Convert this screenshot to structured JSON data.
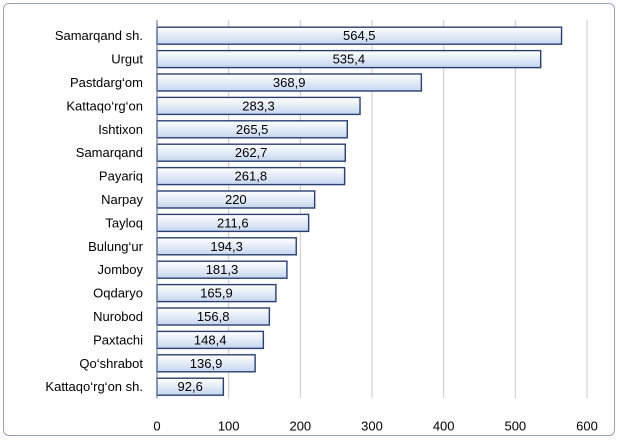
{
  "chart_data": {
    "type": "bar",
    "orientation": "horizontal",
    "categories": [
      "Samarqand sh.",
      "Urgut",
      "Pastdarg‘om",
      "Kattaqo‘rg‘on",
      "Ishtixon",
      "Samarqand",
      "Payariq",
      "Narpay",
      "Tayloq",
      "Bulung‘ur",
      "Jomboy",
      "Oqdaryo",
      "Nurobod",
      "Paxtachi",
      "Qo‘shrabot",
      "Kattaqo‘rg‘on sh."
    ],
    "values": [
      564.5,
      535.4,
      368.9,
      283.3,
      265.5,
      262.7,
      261.8,
      220,
      211.6,
      194.3,
      181.3,
      165.9,
      156.8,
      148.4,
      136.9,
      92.6
    ],
    "value_labels": [
      "564,5",
      "535,4",
      "368,9",
      "283,3",
      "265,5",
      "262,7",
      "261,8",
      "220",
      "211,6",
      "194,3",
      "181,3",
      "165,9",
      "156,8",
      "148,4",
      "136,9",
      "92,6"
    ],
    "xlim": [
      0,
      600
    ],
    "x_ticks": [
      0,
      100,
      200,
      300,
      400,
      500,
      600
    ],
    "x_tick_labels": [
      "0",
      "100",
      "200",
      "300",
      "400",
      "500",
      "600"
    ],
    "title": "",
    "xlabel": "",
    "ylabel": "",
    "grid": true,
    "legend": false,
    "colors": {
      "bar_fill_top": "#ffffff",
      "bar_fill_bottom": "#c6d6ef",
      "bar_stroke": "#2b3f70",
      "grid": "#c9c9c9",
      "axis": "#6f7f9f",
      "text": "#000000",
      "frame": "#9aa3b5"
    }
  }
}
